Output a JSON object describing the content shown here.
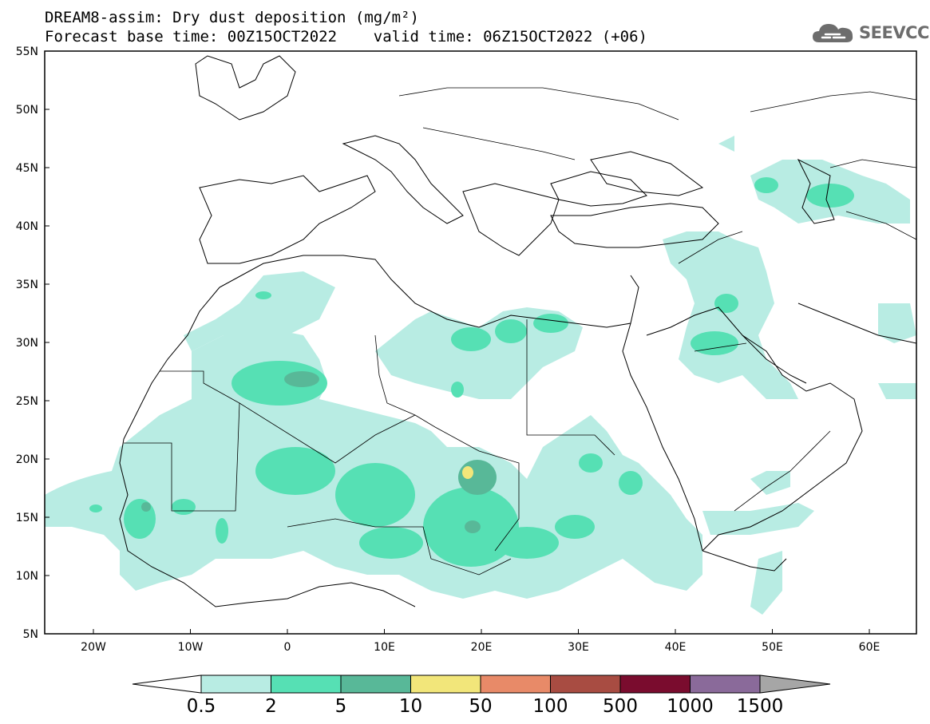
{
  "header": {
    "title_line1": "DREAM8-assim: Dry dust deposition (mg/m²)",
    "title_line2": "Forecast base time: 00Z15OCT2022    valid time: 06Z15OCT2022 (+06)"
  },
  "logo": {
    "text": "SEEVCCC",
    "icon": "cloud-logo-icon"
  },
  "map": {
    "lat_labels": [
      "55N",
      "50N",
      "45N",
      "40N",
      "35N",
      "30N",
      "25N",
      "20N",
      "15N",
      "10N",
      "5N"
    ],
    "lon_labels": [
      "20W",
      "10W",
      "0",
      "10E",
      "20E",
      "30E",
      "40E",
      "50E",
      "60E"
    ]
  },
  "legend": {
    "labels": [
      "0.5",
      "2",
      "5",
      "10",
      "50",
      "100",
      "500",
      "1000",
      "1500"
    ],
    "colors": [
      "#b8ece3",
      "#56e0b4",
      "#58b898",
      "#f2e67a",
      "#e88a68",
      "#a84c42",
      "#7a0c2e",
      "#8a6a9a"
    ],
    "under_color": "#ffffff",
    "over_color": "#a6a6a6"
  },
  "colors": {
    "land_outline": "#000000",
    "level1": "#b8ece3",
    "level2": "#56e0b4",
    "level3": "#58b898",
    "level4": "#f2e67a"
  }
}
